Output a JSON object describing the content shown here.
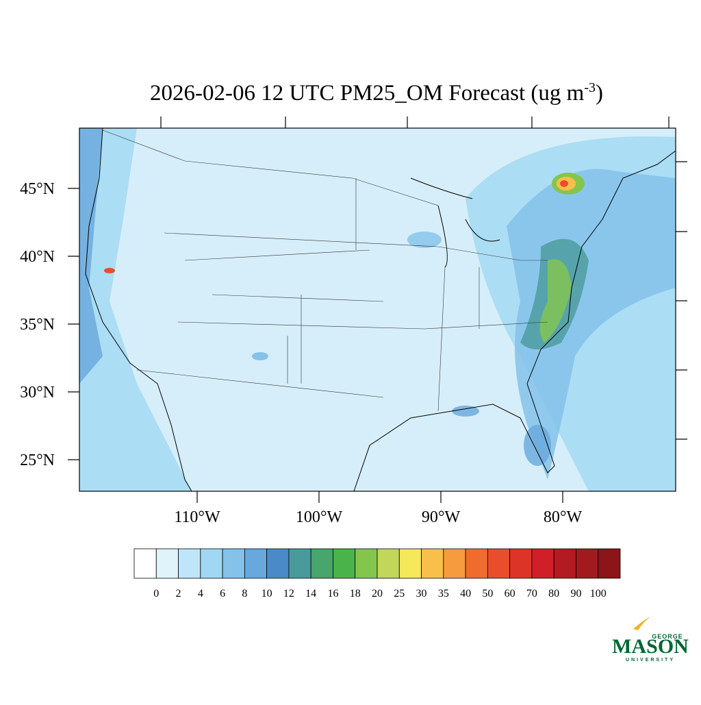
{
  "title": "2026-02-06 12 UTC PM25_OM Forecast (ug m",
  "title_superscript": "-3",
  "title_end": ")",
  "lat_labels": [
    {
      "value": 45,
      "label": "45°N"
    },
    {
      "value": 40,
      "label": "40°N"
    },
    {
      "value": 35,
      "label": "35°N"
    },
    {
      "value": 30,
      "label": "30°N"
    },
    {
      "value": 25,
      "label": "25°N"
    }
  ],
  "lon_labels": [
    {
      "value": -110,
      "label": "110°W"
    },
    {
      "value": -100,
      "label": "100°W"
    },
    {
      "value": -90,
      "label": "90°W"
    },
    {
      "value": -80,
      "label": "80°W"
    }
  ],
  "colorbar": {
    "levels": [
      0,
      2,
      4,
      6,
      8,
      10,
      12,
      14,
      16,
      18,
      20,
      25,
      30,
      35,
      40,
      50,
      60,
      70,
      80,
      90,
      100
    ],
    "colors": [
      "#ffffff",
      "#e0f3fb",
      "#bfe6f8",
      "#a0d8f3",
      "#84c2ea",
      "#68a8dc",
      "#4b8ac8",
      "#4a9a9c",
      "#48a56b",
      "#4ab44a",
      "#84c54e",
      "#c2d75a",
      "#f5e85a",
      "#f8c04a",
      "#f69c3e",
      "#f26b2e",
      "#e84e2c",
      "#dc3427",
      "#d01f27",
      "#b41a22",
      "#a31a1e",
      "#8b1518"
    ]
  },
  "logo": {
    "top": "GEORGE",
    "main": "MASON",
    "bottom": "UNIVERSITY"
  }
}
